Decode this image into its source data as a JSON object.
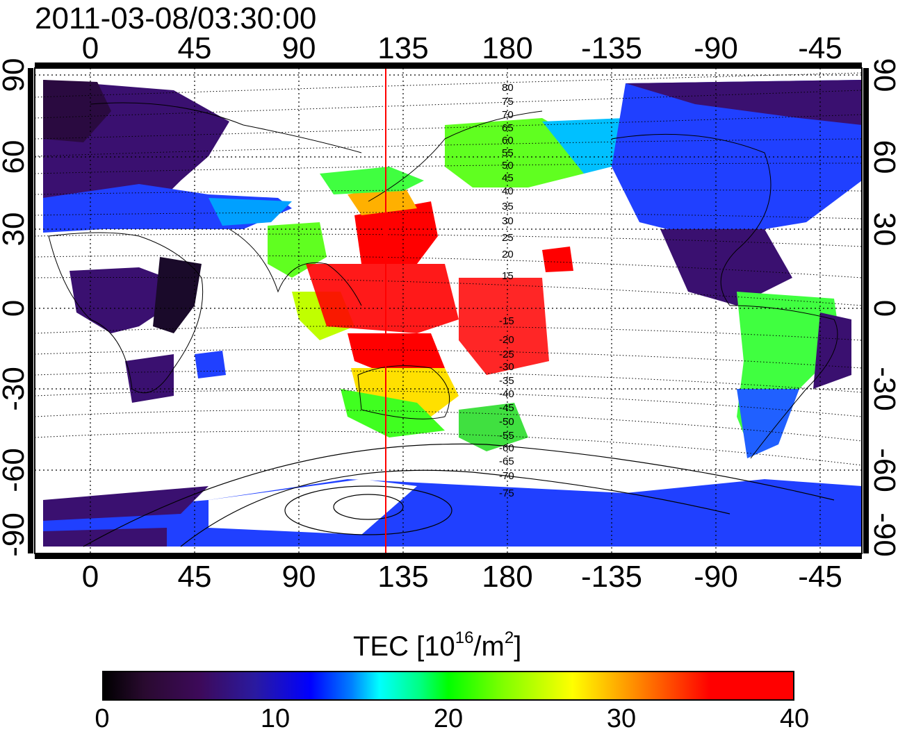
{
  "title": "2011-03-08/03:30:00",
  "lon_top_ticks": [
    "0",
    "45",
    "90",
    "135",
    "180",
    "-135",
    "-90",
    "-45"
  ],
  "lon_bottom_ticks": [
    "0",
    "45",
    "90",
    "135",
    "180",
    "-135",
    "-90",
    "-45"
  ],
  "lat_left_ticks": [
    "90",
    "60",
    "30",
    "0",
    "-30",
    "-60",
    "-90"
  ],
  "lat_right_ticks": [
    "90",
    "60",
    "30",
    "0",
    "-30",
    "-60",
    "-90"
  ],
  "mlat_labels_north": [
    "80",
    "75",
    "70",
    "65",
    "60",
    "55",
    "50",
    "45",
    "40",
    "35",
    "30",
    "25",
    "20",
    "15"
  ],
  "mlat_labels_south": [
    "-15",
    "-20",
    "-25",
    "-30",
    "-35",
    "-40",
    "-45",
    "-50",
    "-55",
    "-60",
    "-65",
    "-70",
    "-75"
  ],
  "colorbar": {
    "label_main": "TEC  [10",
    "label_sup1": "16",
    "label_mid": "/m",
    "label_sup2": "2",
    "label_end": "]",
    "ticks": [
      "0",
      "10",
      "20",
      "30",
      "40"
    ],
    "range": [
      0,
      40
    ]
  },
  "colors": {
    "meridian_line": "#ff0000",
    "tec_max": "#ff0000",
    "tec_min": "#000000"
  }
}
